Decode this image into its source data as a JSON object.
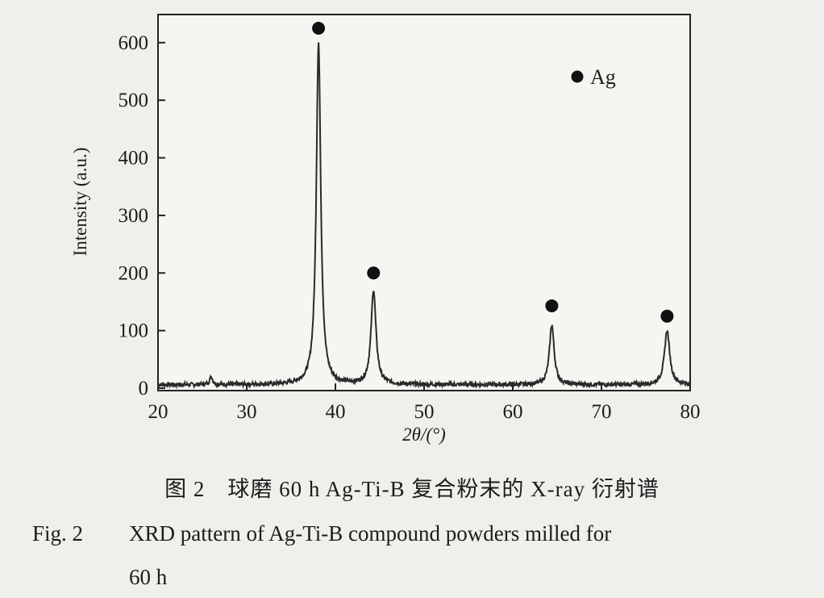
{
  "chart_data": {
    "type": "line",
    "title": "",
    "xlabel": "2θ/(°)",
    "ylabel": "Intensity (a.u.)",
    "xlim": [
      20,
      80
    ],
    "ylim": [
      0,
      650
    ],
    "x_ticks": [
      20,
      30,
      40,
      50,
      60,
      70,
      80
    ],
    "y_ticks": [
      0,
      100,
      200,
      300,
      400,
      500,
      600
    ],
    "grid": false,
    "series": [
      {
        "name": "",
        "color": "#2a2a2a",
        "baseline": 6,
        "peaks": [
          {
            "x": 38.1,
            "y": 600
          },
          {
            "x": 44.3,
            "y": 170
          },
          {
            "x": 64.4,
            "y": 110
          },
          {
            "x": 77.4,
            "y": 100
          },
          {
            "x": 26.0,
            "y": 20
          }
        ]
      }
    ],
    "markers": [
      {
        "x": 38.1,
        "y": 625,
        "label": "Ag"
      },
      {
        "x": 44.3,
        "y": 200,
        "label": "Ag"
      },
      {
        "x": 64.4,
        "y": 143,
        "label": "Ag"
      },
      {
        "x": 77.4,
        "y": 125,
        "label": "Ag"
      }
    ],
    "legend": {
      "position": "top-right",
      "entries": [
        {
          "symbol": "filled-circle",
          "label": "Ag"
        }
      ]
    }
  },
  "caption": {
    "cn_fig_no": "图 2",
    "cn_text": "球磨 60 h Ag-Ti-B 复合粉末的 X-ray 衍射谱",
    "en_fig_no": "Fig. 2",
    "en_text_line1": "XRD pattern of Ag-Ti-B compound powders milled for",
    "en_text_line2": "60 h"
  }
}
